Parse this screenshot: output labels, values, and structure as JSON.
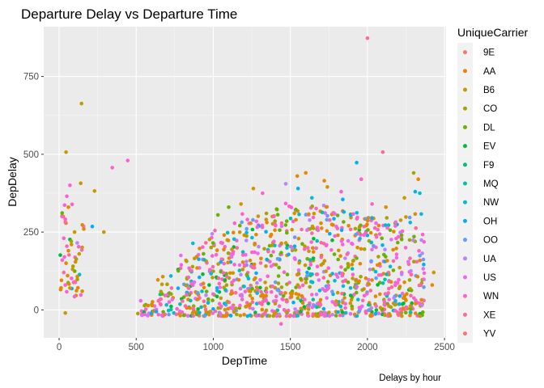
{
  "chart_data": {
    "type": "scatter",
    "title": "Departure Delay vs Departure Time",
    "xlabel": "DepTime",
    "ylabel": "DepDelay",
    "caption": "Delays by hour",
    "xlim": [
      -100,
      2510
    ],
    "ylim": [
      -90,
      910
    ],
    "xticks": [
      0,
      500,
      1000,
      1500,
      2000,
      2500
    ],
    "yticks": [
      0,
      250,
      500,
      750
    ],
    "grid": true,
    "legend": {
      "title": "UniqueCarrier",
      "position": "right",
      "entries": [
        {
          "name": "9E",
          "color": "#F8766D"
        },
        {
          "name": "AA",
          "color": "#E58700"
        },
        {
          "name": "B6",
          "color": "#C99800"
        },
        {
          "name": "CO",
          "color": "#A3A500"
        },
        {
          "name": "DL",
          "color": "#6BB100"
        },
        {
          "name": "EV",
          "color": "#00BA38"
        },
        {
          "name": "F9",
          "color": "#00BF7D"
        },
        {
          "name": "MQ",
          "color": "#00C0AF"
        },
        {
          "name": "NW",
          "color": "#00BCD8"
        },
        {
          "name": "OH",
          "color": "#00B0F6"
        },
        {
          "name": "OO",
          "color": "#619CFF"
        },
        {
          "name": "UA",
          "color": "#B983FF"
        },
        {
          "name": "US",
          "color": "#E76BF3"
        },
        {
          "name": "WN",
          "color": "#FD61D1"
        },
        {
          "name": "XE",
          "color": "#FF67A4"
        },
        {
          "name": "YV",
          "color": "#F8766D"
        }
      ]
    },
    "points": [
      {
        "x": 2000,
        "y": 873,
        "carrier": "XE"
      },
      {
        "x": 145,
        "y": 663,
        "carrier": "B6"
      },
      {
        "x": 45,
        "y": 507,
        "carrier": "B6"
      },
      {
        "x": 2100,
        "y": 507,
        "carrier": "XE"
      },
      {
        "x": 445,
        "y": 480,
        "carrier": "WN"
      },
      {
        "x": 345,
        "y": 457,
        "carrier": "WN"
      },
      {
        "x": 1930,
        "y": 473,
        "carrier": "OH"
      },
      {
        "x": 140,
        "y": 407,
        "carrier": "B6"
      },
      {
        "x": 230,
        "y": 382,
        "carrier": "B6"
      },
      {
        "x": 70,
        "y": 400,
        "carrier": "WN"
      },
      {
        "x": 50,
        "y": 365,
        "carrier": "WN"
      },
      {
        "x": 60,
        "y": 330,
        "carrier": "AA"
      },
      {
        "x": 20,
        "y": 300,
        "carrier": "WN"
      },
      {
        "x": 40,
        "y": 282,
        "carrier": "XE"
      },
      {
        "x": 100,
        "y": 250,
        "carrier": "B6"
      },
      {
        "x": 160,
        "y": 260,
        "carrier": "AA"
      },
      {
        "x": 215,
        "y": 268,
        "carrier": "OH"
      },
      {
        "x": 290,
        "y": 250,
        "carrier": "B6"
      },
      {
        "x": 30,
        "y": 230,
        "carrier": "WN"
      },
      {
        "x": 80,
        "y": 210,
        "carrier": "B6"
      },
      {
        "x": 60,
        "y": 190,
        "carrier": "AA"
      },
      {
        "x": 130,
        "y": 180,
        "carrier": "B6"
      },
      {
        "x": 20,
        "y": 160,
        "carrier": "WN"
      },
      {
        "x": 45,
        "y": 150,
        "carrier": "AA"
      },
      {
        "x": 90,
        "y": 140,
        "carrier": "CO"
      },
      {
        "x": 30,
        "y": 120,
        "carrier": "XE"
      },
      {
        "x": 55,
        "y": 110,
        "carrier": "AA"
      },
      {
        "x": 15,
        "y": 95,
        "carrier": "AA"
      },
      {
        "x": 40,
        "y": 80,
        "carrier": "WN"
      },
      {
        "x": 70,
        "y": 70,
        "carrier": "B6"
      },
      {
        "x": 10,
        "y": 65,
        "carrier": "AA"
      },
      {
        "x": 100,
        "y": 90,
        "carrier": "XE"
      },
      {
        "x": 150,
        "y": 60,
        "carrier": "B6"
      },
      {
        "x": 40,
        "y": -10,
        "carrier": "B6"
      },
      {
        "x": 1470,
        "y": 405,
        "carrier": "UA"
      },
      {
        "x": 1545,
        "y": 430,
        "carrier": "AA"
      },
      {
        "x": 1550,
        "y": 390,
        "carrier": "OH"
      },
      {
        "x": 1600,
        "y": 440,
        "carrier": "AA"
      },
      {
        "x": 1640,
        "y": 360,
        "carrier": "NW"
      },
      {
        "x": 1720,
        "y": 415,
        "carrier": "AA"
      },
      {
        "x": 1740,
        "y": 395,
        "carrier": "B6"
      },
      {
        "x": 1830,
        "y": 380,
        "carrier": "WN"
      },
      {
        "x": 1840,
        "y": 355,
        "carrier": "OH"
      },
      {
        "x": 1960,
        "y": 420,
        "carrier": "WN"
      },
      {
        "x": 1320,
        "y": 375,
        "carrier": "WN"
      },
      {
        "x": 1260,
        "y": 390,
        "carrier": "B6"
      },
      {
        "x": 1180,
        "y": 340,
        "carrier": "B6"
      },
      {
        "x": 1100,
        "y": 330,
        "carrier": "DL"
      },
      {
        "x": 1030,
        "y": 305,
        "carrier": "DL"
      },
      {
        "x": 2300,
        "y": 440,
        "carrier": "CO"
      },
      {
        "x": 2330,
        "y": 420,
        "carrier": "AA"
      },
      {
        "x": 2310,
        "y": 380,
        "carrier": "OH"
      },
      {
        "x": 2340,
        "y": 375,
        "carrier": "NW"
      },
      {
        "x": 2240,
        "y": 360,
        "carrier": "B6"
      },
      {
        "x": 2120,
        "y": 330,
        "carrier": "AA"
      },
      {
        "x": 2030,
        "y": 340,
        "carrier": "WN"
      },
      {
        "x": 2430,
        "y": 120,
        "carrier": "B6"
      },
      {
        "x": 2420,
        "y": 80,
        "carrier": "AA"
      },
      {
        "x": 1440,
        "y": -45,
        "carrier": "WN"
      }
    ],
    "bands": [
      {
        "x_start": 510,
        "x_end": 620,
        "y_max": 40
      },
      {
        "x_start": 630,
        "x_end": 750,
        "y_max": 110
      },
      {
        "x_start": 760,
        "x_end": 860,
        "y_max": 190
      },
      {
        "x_start": 865,
        "x_end": 960,
        "y_max": 230
      },
      {
        "x_start": 965,
        "x_end": 1060,
        "y_max": 260
      },
      {
        "x_start": 1065,
        "x_end": 1160,
        "y_max": 300
      },
      {
        "x_start": 1165,
        "x_end": 1260,
        "y_max": 310
      },
      {
        "x_start": 1265,
        "x_end": 1360,
        "y_max": 320
      },
      {
        "x_start": 1365,
        "x_end": 1460,
        "y_max": 330
      },
      {
        "x_start": 1465,
        "x_end": 1560,
        "y_max": 350
      },
      {
        "x_start": 1565,
        "x_end": 1660,
        "y_max": 340
      },
      {
        "x_start": 1665,
        "x_end": 1760,
        "y_max": 340
      },
      {
        "x_start": 1765,
        "x_end": 1860,
        "y_max": 330
      },
      {
        "x_start": 1865,
        "x_end": 1960,
        "y_max": 320
      },
      {
        "x_start": 1965,
        "x_end": 2060,
        "y_max": 310
      },
      {
        "x_start": 2065,
        "x_end": 2160,
        "y_max": 300
      },
      {
        "x_start": 2165,
        "x_end": 2260,
        "y_max": 300
      },
      {
        "x_start": 2265,
        "x_end": 2370,
        "y_max": 310
      }
    ]
  }
}
